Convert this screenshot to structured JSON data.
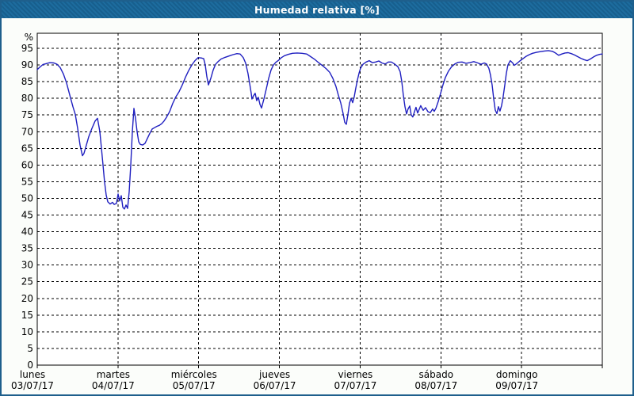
{
  "window": {
    "title": "Humedad relativa [%]"
  },
  "colors": {
    "titlebar_bg": "#1d6c9e",
    "titlebar_hatch": "#175f8e",
    "titlebar_text": "#ffffff",
    "window_border": "#1e5f8c",
    "canvas_bg": "#fbfdfa",
    "plot_bg": "#ffffff",
    "grid": "#000000",
    "axis": "#000000",
    "line": "#1f1fc0",
    "label_text": "#000000"
  },
  "chart_data": {
    "type": "line",
    "title": "Humedad relativa [%]",
    "ylabel": "%",
    "ylim": [
      0,
      100
    ],
    "yticks": [
      0,
      5,
      10,
      15,
      20,
      25,
      30,
      35,
      40,
      45,
      50,
      55,
      60,
      65,
      70,
      75,
      80,
      85,
      90,
      95
    ],
    "grid": "dashed",
    "legend_position": "none",
    "x_days": [
      {
        "name": "lunes",
        "date": "03/07/17"
      },
      {
        "name": "martes",
        "date": "04/07/17"
      },
      {
        "name": "miércoles",
        "date": "05/07/17"
      },
      {
        "name": "jueves",
        "date": "06/07/17"
      },
      {
        "name": "viernes",
        "date": "07/07/17"
      },
      {
        "name": "sábado",
        "date": "08/07/17"
      },
      {
        "name": "domingo",
        "date": "09/07/17"
      }
    ],
    "x_range_days": [
      0,
      7
    ],
    "series": [
      {
        "name": "Humedad relativa [%]",
        "color": "#1f1fc0",
        "points": [
          [
            0,
            88.6
          ],
          [
            0.029,
            89.3
          ],
          [
            0.069,
            90.1
          ],
          [
            0.108,
            90.4
          ],
          [
            0.157,
            90.7
          ],
          [
            0.206,
            90.6
          ],
          [
            0.245,
            90.2
          ],
          [
            0.285,
            89.2
          ],
          [
            0.324,
            87.3
          ],
          [
            0.363,
            84.6
          ],
          [
            0.403,
            81
          ],
          [
            0.442,
            77.5
          ],
          [
            0.471,
            75.2
          ],
          [
            0.501,
            71
          ],
          [
            0.53,
            66
          ],
          [
            0.56,
            62.8
          ],
          [
            0.579,
            63.5
          ],
          [
            0.609,
            66
          ],
          [
            0.638,
            68.5
          ],
          [
            0.677,
            71
          ],
          [
            0.717,
            73.2
          ],
          [
            0.746,
            74
          ],
          [
            0.776,
            70
          ],
          [
            0.795,
            65
          ],
          [
            0.815,
            60
          ],
          [
            0.834,
            55
          ],
          [
            0.854,
            51
          ],
          [
            0.874,
            49
          ],
          [
            0.903,
            48.3
          ],
          [
            0.933,
            48.8
          ],
          [
            0.952,
            48.2
          ],
          [
            0.982,
            48.5
          ],
          [
            1.001,
            51.3
          ],
          [
            1.021,
            49.2
          ],
          [
            1.041,
            50.8
          ],
          [
            1.06,
            47.3
          ],
          [
            1.08,
            46.8
          ],
          [
            1.1,
            48
          ],
          [
            1.119,
            47
          ],
          [
            1.139,
            52
          ],
          [
            1.158,
            60
          ],
          [
            1.178,
            70
          ],
          [
            1.198,
            77
          ],
          [
            1.217,
            74
          ],
          [
            1.237,
            70
          ],
          [
            1.257,
            67
          ],
          [
            1.276,
            66.2
          ],
          [
            1.306,
            66
          ],
          [
            1.335,
            66.5
          ],
          [
            1.365,
            68
          ],
          [
            1.394,
            69.5
          ],
          [
            1.424,
            70.8
          ],
          [
            1.453,
            71.2
          ],
          [
            1.482,
            71.6
          ],
          [
            1.512,
            71.9
          ],
          [
            1.541,
            72.4
          ],
          [
            1.571,
            73.2
          ],
          [
            1.6,
            74.3
          ],
          [
            1.64,
            76
          ],
          [
            1.679,
            78.5
          ],
          [
            1.718,
            80.5
          ],
          [
            1.757,
            82
          ],
          [
            1.797,
            84
          ],
          [
            1.836,
            86.3
          ],
          [
            1.875,
            88.3
          ],
          [
            1.914,
            90
          ],
          [
            1.954,
            91.3
          ],
          [
            1.993,
            92.2
          ],
          [
            2.032,
            92.1
          ],
          [
            2.062,
            91.9
          ],
          [
            2.081,
            90
          ],
          [
            2.101,
            86.5
          ],
          [
            2.121,
            84
          ],
          [
            2.15,
            86
          ],
          [
            2.18,
            88.5
          ],
          [
            2.209,
            90.2
          ],
          [
            2.239,
            91
          ],
          [
            2.278,
            91.8
          ],
          [
            2.327,
            92.3
          ],
          [
            2.376,
            92.7
          ],
          [
            2.425,
            93.1
          ],
          [
            2.474,
            93.4
          ],
          [
            2.513,
            93.3
          ],
          [
            2.553,
            92.2
          ],
          [
            2.582,
            90.5
          ],
          [
            2.611,
            87.5
          ],
          [
            2.631,
            84.5
          ],
          [
            2.651,
            81.5
          ],
          [
            2.66,
            79.8
          ],
          [
            2.68,
            80.8
          ],
          [
            2.7,
            81.5
          ],
          [
            2.719,
            79.3
          ],
          [
            2.739,
            80.3
          ],
          [
            2.759,
            78.2
          ],
          [
            2.778,
            77.1
          ],
          [
            2.808,
            79.8
          ],
          [
            2.837,
            82.8
          ],
          [
            2.867,
            86
          ],
          [
            2.896,
            88.5
          ],
          [
            2.926,
            90
          ],
          [
            2.955,
            90.8
          ],
          [
            2.984,
            91.3
          ],
          [
            3.024,
            92.2
          ],
          [
            3.063,
            92.8
          ],
          [
            3.112,
            93.2
          ],
          [
            3.161,
            93.5
          ],
          [
            3.22,
            93.6
          ],
          [
            3.279,
            93.5
          ],
          [
            3.338,
            93.3
          ],
          [
            3.387,
            92.5
          ],
          [
            3.436,
            91.7
          ],
          [
            3.485,
            90.7
          ],
          [
            3.534,
            89.8
          ],
          [
            3.583,
            88.8
          ],
          [
            3.623,
            87.8
          ],
          [
            3.662,
            86
          ],
          [
            3.701,
            83.5
          ],
          [
            3.73,
            81
          ],
          [
            3.76,
            78.6
          ],
          [
            3.789,
            75.5
          ],
          [
            3.809,
            72.8
          ],
          [
            3.829,
            72.2
          ],
          [
            3.848,
            75
          ],
          [
            3.868,
            78.5
          ],
          [
            3.888,
            80
          ],
          [
            3.907,
            78.7
          ],
          [
            3.927,
            80.5
          ],
          [
            3.946,
            83
          ],
          [
            3.966,
            85.5
          ],
          [
            3.986,
            87.5
          ],
          [
            4.005,
            89
          ],
          [
            4.035,
            90.2
          ],
          [
            4.074,
            90.9
          ],
          [
            4.113,
            91.3
          ],
          [
            4.152,
            90.7
          ],
          [
            4.192,
            90.9
          ],
          [
            4.231,
            91.2
          ],
          [
            4.27,
            90.6
          ],
          [
            4.31,
            90.3
          ],
          [
            4.349,
            90.9
          ],
          [
            4.388,
            90.9
          ],
          [
            4.427,
            90.3
          ],
          [
            4.467,
            89.5
          ],
          [
            4.496,
            88
          ],
          [
            4.516,
            85
          ],
          [
            4.535,
            81
          ],
          [
            4.555,
            77.5
          ],
          [
            4.575,
            75.3
          ],
          [
            4.594,
            76.8
          ],
          [
            4.614,
            77.7
          ],
          [
            4.633,
            75
          ],
          [
            4.653,
            74.4
          ],
          [
            4.673,
            76
          ],
          [
            4.692,
            77.3
          ],
          [
            4.712,
            75.6
          ],
          [
            4.731,
            76.7
          ],
          [
            4.751,
            77.8
          ],
          [
            4.781,
            76.4
          ],
          [
            4.81,
            77.2
          ],
          [
            4.84,
            76
          ],
          [
            4.869,
            75.7
          ],
          [
            4.898,
            76.8
          ],
          [
            4.918,
            76.1
          ],
          [
            4.938,
            77
          ],
          [
            4.967,
            79
          ],
          [
            4.997,
            81.5
          ],
          [
            5.026,
            84
          ],
          [
            5.055,
            86.2
          ],
          [
            5.095,
            88.2
          ],
          [
            5.134,
            89.5
          ],
          [
            5.173,
            90.3
          ],
          [
            5.212,
            90.8
          ],
          [
            5.262,
            90.9
          ],
          [
            5.311,
            90.5
          ],
          [
            5.36,
            90.7
          ],
          [
            5.409,
            91
          ],
          [
            5.458,
            90.6
          ],
          [
            5.497,
            90.2
          ],
          [
            5.537,
            90.6
          ],
          [
            5.566,
            90.3
          ],
          [
            5.595,
            89
          ],
          [
            5.615,
            87
          ],
          [
            5.635,
            84
          ],
          [
            5.654,
            80
          ],
          [
            5.674,
            76.5
          ],
          [
            5.694,
            75.4
          ],
          [
            5.713,
            77.5
          ],
          [
            5.733,
            76.2
          ],
          [
            5.752,
            77.8
          ],
          [
            5.772,
            80.5
          ],
          [
            5.792,
            84
          ],
          [
            5.811,
            87.5
          ],
          [
            5.831,
            90
          ],
          [
            5.86,
            91.3
          ],
          [
            5.89,
            90.6
          ],
          [
            5.909,
            89.9
          ],
          [
            5.929,
            90.2
          ],
          [
            5.949,
            90.6
          ],
          [
            5.978,
            91.2
          ],
          [
            6.017,
            91.9
          ],
          [
            6.057,
            92.6
          ],
          [
            6.096,
            93.1
          ],
          [
            6.135,
            93.5
          ],
          [
            6.184,
            93.8
          ],
          [
            6.233,
            94
          ],
          [
            6.282,
            94.2
          ],
          [
            6.332,
            94.3
          ],
          [
            6.381,
            94.1
          ],
          [
            6.42,
            93.6
          ],
          [
            6.459,
            92.9
          ],
          [
            6.498,
            93.3
          ],
          [
            6.538,
            93.6
          ],
          [
            6.577,
            93.7
          ],
          [
            6.616,
            93.4
          ],
          [
            6.655,
            93
          ],
          [
            6.695,
            92.5
          ],
          [
            6.734,
            92
          ],
          [
            6.773,
            91.6
          ],
          [
            6.812,
            91.3
          ],
          [
            6.852,
            91.8
          ],
          [
            6.891,
            92.4
          ],
          [
            6.93,
            92.9
          ],
          [
            6.97,
            93.2
          ],
          [
            7,
            93.3
          ]
        ]
      }
    ]
  }
}
